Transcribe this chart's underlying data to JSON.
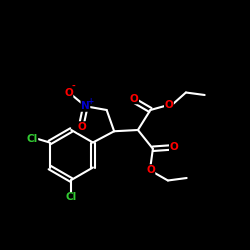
{
  "bg_color": "#000000",
  "bond_color": "#ffffff",
  "atom_colors": {
    "O": "#ff0000",
    "N": "#0000cc",
    "Cl": "#33cc33",
    "C": "#ffffff"
  },
  "fig_size": [
    2.5,
    2.5
  ],
  "dpi": 100
}
